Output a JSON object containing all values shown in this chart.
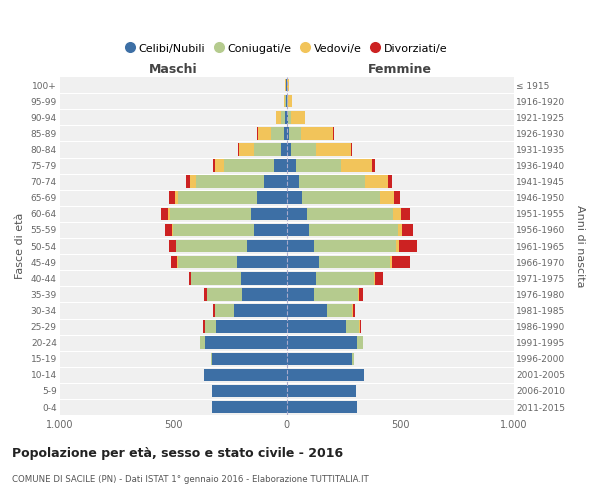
{
  "age_groups": [
    "0-4",
    "5-9",
    "10-14",
    "15-19",
    "20-24",
    "25-29",
    "30-34",
    "35-39",
    "40-44",
    "45-49",
    "50-54",
    "55-59",
    "60-64",
    "65-69",
    "70-74",
    "75-79",
    "80-84",
    "85-89",
    "90-94",
    "95-99",
    "100+"
  ],
  "birth_years": [
    "2011-2015",
    "2006-2010",
    "2001-2005",
    "1996-2000",
    "1991-1995",
    "1986-1990",
    "1981-1985",
    "1976-1980",
    "1971-1975",
    "1966-1970",
    "1961-1965",
    "1956-1960",
    "1951-1955",
    "1946-1950",
    "1941-1945",
    "1936-1940",
    "1931-1935",
    "1926-1930",
    "1921-1925",
    "1916-1920",
    "≤ 1915"
  ],
  "colors": {
    "celibi": "#3d6fa5",
    "coniugati": "#b5cb8e",
    "vedovi": "#f2c45a",
    "divorziati": "#cc2222"
  },
  "maschi": {
    "celibi": [
      330,
      330,
      365,
      330,
      360,
      310,
      230,
      195,
      200,
      220,
      175,
      145,
      155,
      130,
      100,
      55,
      25,
      10,
      5,
      3,
      2
    ],
    "coniugati": [
      0,
      0,
      0,
      5,
      20,
      50,
      85,
      155,
      220,
      260,
      310,
      355,
      360,
      350,
      300,
      220,
      120,
      60,
      20,
      5,
      2
    ],
    "vedovi": [
      0,
      0,
      0,
      0,
      0,
      1,
      2,
      2,
      2,
      3,
      4,
      5,
      8,
      10,
      25,
      40,
      65,
      55,
      20,
      5,
      2
    ],
    "divorziati": [
      0,
      0,
      0,
      0,
      2,
      5,
      5,
      10,
      10,
      25,
      30,
      30,
      30,
      30,
      20,
      10,
      5,
      5,
      0,
      0,
      0
    ]
  },
  "femmine": {
    "celibi": [
      310,
      305,
      340,
      290,
      310,
      260,
      180,
      120,
      130,
      145,
      120,
      100,
      90,
      70,
      55,
      40,
      20,
      10,
      5,
      3,
      2
    ],
    "coniugati": [
      0,
      0,
      0,
      8,
      25,
      60,
      110,
      195,
      255,
      310,
      360,
      390,
      380,
      340,
      290,
      200,
      110,
      55,
      15,
      5,
      2
    ],
    "vedovi": [
      0,
      0,
      0,
      0,
      1,
      2,
      2,
      3,
      5,
      10,
      15,
      20,
      35,
      65,
      100,
      135,
      155,
      140,
      60,
      18,
      5
    ],
    "divorziati": [
      0,
      0,
      0,
      0,
      2,
      5,
      10,
      20,
      35,
      80,
      80,
      45,
      40,
      25,
      20,
      15,
      5,
      5,
      2,
      0,
      0
    ]
  },
  "title": "Popolazione per età, sesso e stato civile - 2016",
  "subtitle": "COMUNE DI SACILE (PN) - Dati ISTAT 1° gennaio 2016 - Elaborazione TUTTITALIA.IT",
  "xlabel_left": "Maschi",
  "xlabel_right": "Femmine",
  "ylabel_left": "Fasce di età",
  "ylabel_right": "Anni di nascita",
  "xlim": 1000,
  "bg_color": "#ffffff",
  "plot_bg_color": "#f0f0f0",
  "grid_color": "#ffffff",
  "legend_labels": [
    "Celibi/Nubili",
    "Coniugati/e",
    "Vedovi/e",
    "Divorziati/e"
  ]
}
